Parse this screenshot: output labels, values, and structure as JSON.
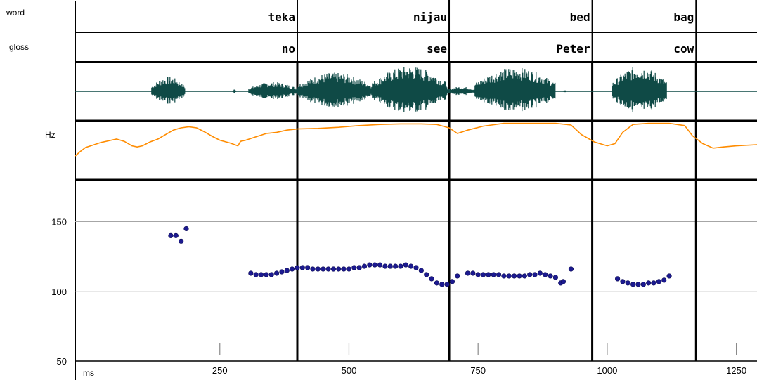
{
  "chart_data": {
    "type": "scatter",
    "tier_labels": {
      "word": "word",
      "gloss": "gloss",
      "hz": "Hz",
      "ms": "ms"
    },
    "words": [
      {
        "label": "teka",
        "gloss": "no",
        "end": 400
      },
      {
        "label": "nijau",
        "gloss": "see",
        "end": 694
      },
      {
        "label": "bed",
        "gloss": "Peter",
        "end": 971
      },
      {
        "label": "bag",
        "gloss": "cow",
        "end": 1172
      },
      {
        "label": "",
        "gloss": "",
        "end": 1290
      }
    ],
    "x_range": [
      -30,
      1290
    ],
    "x_ticks": [
      250,
      500,
      750,
      1000,
      1250
    ],
    "y_range": [
      50,
      180
    ],
    "y_ticks": [
      150,
      100,
      50
    ],
    "y_gridlines": [
      150,
      100
    ],
    "pitch_points": [
      [
        155,
        140
      ],
      [
        165,
        140
      ],
      [
        175,
        136
      ],
      [
        185,
        145
      ],
      [
        310,
        113
      ],
      [
        320,
        112
      ],
      [
        330,
        112
      ],
      [
        340,
        112
      ],
      [
        350,
        112
      ],
      [
        360,
        113
      ],
      [
        370,
        114
      ],
      [
        380,
        115
      ],
      [
        390,
        116
      ],
      [
        400,
        117
      ],
      [
        410,
        117
      ],
      [
        420,
        117
      ],
      [
        430,
        116
      ],
      [
        440,
        116
      ],
      [
        450,
        116
      ],
      [
        460,
        116
      ],
      [
        470,
        116
      ],
      [
        480,
        116
      ],
      [
        490,
        116
      ],
      [
        500,
        116
      ],
      [
        510,
        117
      ],
      [
        520,
        117
      ],
      [
        530,
        118
      ],
      [
        540,
        119
      ],
      [
        550,
        119
      ],
      [
        560,
        119
      ],
      [
        570,
        118
      ],
      [
        580,
        118
      ],
      [
        590,
        118
      ],
      [
        600,
        118
      ],
      [
        610,
        119
      ],
      [
        620,
        118
      ],
      [
        630,
        117
      ],
      [
        640,
        115
      ],
      [
        650,
        112
      ],
      [
        660,
        109
      ],
      [
        670,
        106
      ],
      [
        680,
        105
      ],
      [
        690,
        105
      ],
      [
        700,
        107
      ],
      [
        710,
        111
      ],
      [
        730,
        113
      ],
      [
        740,
        113
      ],
      [
        750,
        112
      ],
      [
        760,
        112
      ],
      [
        770,
        112
      ],
      [
        780,
        112
      ],
      [
        790,
        112
      ],
      [
        800,
        111
      ],
      [
        810,
        111
      ],
      [
        820,
        111
      ],
      [
        830,
        111
      ],
      [
        840,
        111
      ],
      [
        850,
        112
      ],
      [
        860,
        112
      ],
      [
        870,
        113
      ],
      [
        880,
        112
      ],
      [
        890,
        111
      ],
      [
        900,
        110
      ],
      [
        910,
        106
      ],
      [
        915,
        107
      ],
      [
        930,
        116
      ],
      [
        1020,
        109
      ],
      [
        1030,
        107
      ],
      [
        1040,
        106
      ],
      [
        1050,
        105
      ],
      [
        1060,
        105
      ],
      [
        1070,
        105
      ],
      [
        1080,
        106
      ],
      [
        1090,
        106
      ],
      [
        1100,
        107
      ],
      [
        1110,
        108
      ],
      [
        1120,
        111
      ]
    ],
    "intensity_contour": [
      [
        -30,
        0.6
      ],
      [
        -20,
        0.52
      ],
      [
        -10,
        0.45
      ],
      [
        0,
        0.42
      ],
      [
        20,
        0.36
      ],
      [
        35,
        0.33
      ],
      [
        50,
        0.3
      ],
      [
        65,
        0.34
      ],
      [
        80,
        0.42
      ],
      [
        90,
        0.44
      ],
      [
        100,
        0.42
      ],
      [
        115,
        0.35
      ],
      [
        130,
        0.3
      ],
      [
        145,
        0.22
      ],
      [
        160,
        0.14
      ],
      [
        175,
        0.1
      ],
      [
        190,
        0.08
      ],
      [
        205,
        0.1
      ],
      [
        220,
        0.17
      ],
      [
        235,
        0.25
      ],
      [
        250,
        0.32
      ],
      [
        270,
        0.37
      ],
      [
        285,
        0.42
      ],
      [
        290,
        0.34
      ],
      [
        300,
        0.32
      ],
      [
        320,
        0.26
      ],
      [
        340,
        0.2
      ],
      [
        360,
        0.18
      ],
      [
        380,
        0.14
      ],
      [
        400,
        0.12
      ],
      [
        440,
        0.11
      ],
      [
        480,
        0.09
      ],
      [
        520,
        0.06
      ],
      [
        560,
        0.04
      ],
      [
        600,
        0.03
      ],
      [
        640,
        0.03
      ],
      [
        670,
        0.04
      ],
      [
        694,
        0.1
      ],
      [
        710,
        0.2
      ],
      [
        730,
        0.14
      ],
      [
        760,
        0.07
      ],
      [
        800,
        0.02
      ],
      [
        850,
        0.02
      ],
      [
        900,
        0.02
      ],
      [
        930,
        0.05
      ],
      [
        950,
        0.22
      ],
      [
        975,
        0.35
      ],
      [
        1000,
        0.42
      ],
      [
        1015,
        0.38
      ],
      [
        1030,
        0.18
      ],
      [
        1050,
        0.04
      ],
      [
        1080,
        0.02
      ],
      [
        1120,
        0.02
      ],
      [
        1150,
        0.06
      ],
      [
        1165,
        0.24
      ],
      [
        1185,
        0.38
      ],
      [
        1205,
        0.46
      ],
      [
        1225,
        0.44
      ],
      [
        1250,
        0.42
      ],
      [
        1290,
        0.4
      ]
    ],
    "waveform_segments": [
      {
        "start": 118,
        "end": 183,
        "amp": 0.55
      },
      {
        "start": 275,
        "end": 282,
        "amp": 0.08
      },
      {
        "start": 306,
        "end": 400,
        "amp": 0.35
      },
      {
        "start": 400,
        "end": 544,
        "amp": 0.7
      },
      {
        "start": 544,
        "end": 690,
        "amp": 0.95
      },
      {
        "start": 690,
        "end": 744,
        "amp": 0.18
      },
      {
        "start": 744,
        "end": 900,
        "amp": 0.9
      },
      {
        "start": 915,
        "end": 920,
        "amp": 0.06
      },
      {
        "start": 1010,
        "end": 1116,
        "amp": 0.95
      }
    ],
    "colors": {
      "waveform": "#0f4a46",
      "intensity": "#ff8c00",
      "points": "#1c1a90",
      "axes": "#000000",
      "grid": "#a6a6a6"
    }
  }
}
